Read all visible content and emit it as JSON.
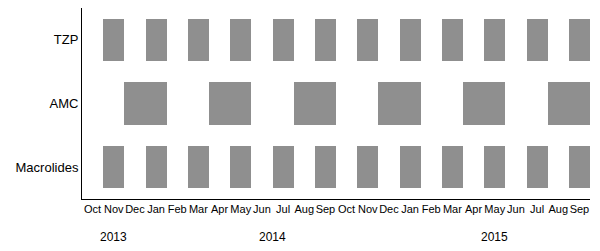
{
  "chart_data": {
    "type": "timeline",
    "categories": [
      "Oct",
      "Nov",
      "Dec",
      "Jan",
      "Feb",
      "Mar",
      "Apr",
      "May",
      "Jun",
      "Jul",
      "Aug",
      "Sep",
      "Oct",
      "Nov",
      "Dec",
      "Jan",
      "Feb",
      "Mar",
      "Apr",
      "May",
      "Jun",
      "Jul",
      "Aug",
      "Sep"
    ],
    "years": [
      "2013",
      "2013",
      "2013",
      "2014",
      "2014",
      "2014",
      "2014",
      "2014",
      "2014",
      "2014",
      "2014",
      "2014",
      "2014",
      "2014",
      "2014",
      "2015",
      "2015",
      "2015",
      "2015",
      "2015",
      "2015",
      "2015",
      "2015",
      "2015"
    ],
    "color": "#8f8f8f",
    "series": [
      {
        "name": "TZP",
        "values": [
          0,
          1,
          0,
          1,
          0,
          1,
          0,
          1,
          0,
          1,
          0,
          1,
          0,
          1,
          0,
          1,
          0,
          1,
          0,
          1,
          0,
          1,
          0,
          1
        ]
      },
      {
        "name": "AMC",
        "values": [
          0,
          0,
          1,
          1,
          0,
          0,
          1,
          1,
          0,
          0,
          1,
          1,
          0,
          0,
          1,
          1,
          0,
          0,
          1,
          1,
          0,
          0,
          1,
          1
        ]
      },
      {
        "name": "Macrolides",
        "values": [
          0,
          1,
          0,
          1,
          0,
          1,
          0,
          1,
          0,
          1,
          0,
          1,
          0,
          1,
          0,
          1,
          0,
          1,
          0,
          1,
          0,
          1,
          0,
          1
        ]
      }
    ]
  }
}
